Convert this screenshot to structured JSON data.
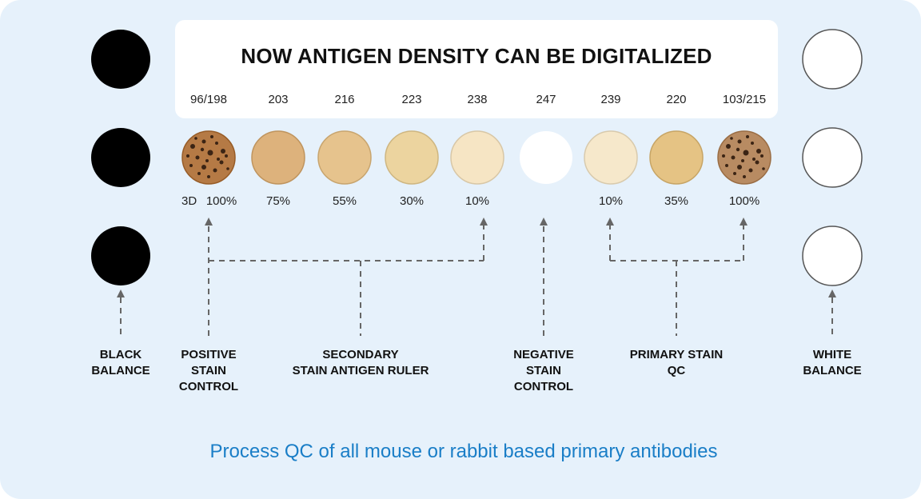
{
  "title": "NOW ANTIGEN DENSITY CAN BE DIGITALIZED",
  "footer": "Process QC of all mouse or rabbit based primary antibodies",
  "samples": [
    {
      "value": "96/198",
      "percent": "100%",
      "prefix": "3D",
      "color": "#b57a45",
      "dotted": true
    },
    {
      "value": "203",
      "percent": "75%",
      "color": "#ddb27c"
    },
    {
      "value": "216",
      "percent": "55%",
      "color": "#e6c38d"
    },
    {
      "value": "223",
      "percent": "30%",
      "color": "#ecd49f"
    },
    {
      "value": "238",
      "percent": "10%",
      "color": "#f6e5c4"
    },
    {
      "value": "247",
      "percent": "",
      "color": "#ffffff"
    },
    {
      "value": "239",
      "percent": "10%",
      "color": "#f6e8cb"
    },
    {
      "value": "220",
      "percent": "35%",
      "color": "#e5c384"
    },
    {
      "value": "103/215",
      "percent": "100%",
      "color": "#b88b62",
      "dotted": true
    }
  ],
  "labels": {
    "black_balance": "BLACK\nBALANCE",
    "positive_control": "POSITIVE\nSTAIN\nCONTROL",
    "secondary_ruler": "SECONDARY\nSTAIN ANTIGEN RULER",
    "negative_control": "NEGATIVE\nSTAIN\nCONTROL",
    "primary_qc": "PRIMARY STAIN\nQC",
    "white_balance": "WHITE\nBALANCE"
  },
  "colors": {
    "background": "#e6f1fb",
    "black_balance": "#000000",
    "white_balance": "#ffffff",
    "footer_text": "#1a7ec7",
    "arrow": "#666666"
  }
}
